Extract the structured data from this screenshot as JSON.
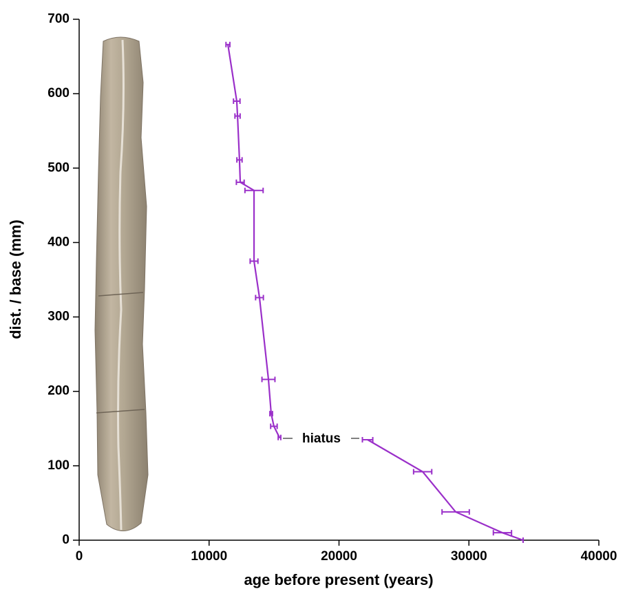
{
  "chart_data": {
    "type": "line",
    "x_label": "age before present (years)",
    "y_label": "dist. / base (mm)",
    "annotation": "hiatus",
    "x": [
      11450,
      12130,
      12190,
      12340,
      12400,
      13460,
      13460,
      13880,
      14570,
      14780,
      14990,
      15420,
      null,
      22200,
      26440,
      28980,
      32580,
      34170
    ],
    "values": [
      666,
      590,
      570,
      511,
      481,
      470,
      375,
      326,
      216,
      170,
      153,
      138,
      null,
      135,
      92,
      38,
      10,
      0
    ],
    "x_err": [
      150,
      250,
      200,
      200,
      300,
      700,
      300,
      300,
      500,
      100,
      250,
      100,
      null,
      400,
      700,
      1050,
      700,
      0
    ],
    "color": "#9a2fc9",
    "xlim": [
      0,
      40000
    ],
    "xticks": [
      0,
      10000,
      20000,
      30000,
      40000
    ],
    "ylim": [
      0,
      700
    ],
    "yticks": [
      0,
      100,
      200,
      300,
      400,
      500,
      600,
      700
    ]
  }
}
